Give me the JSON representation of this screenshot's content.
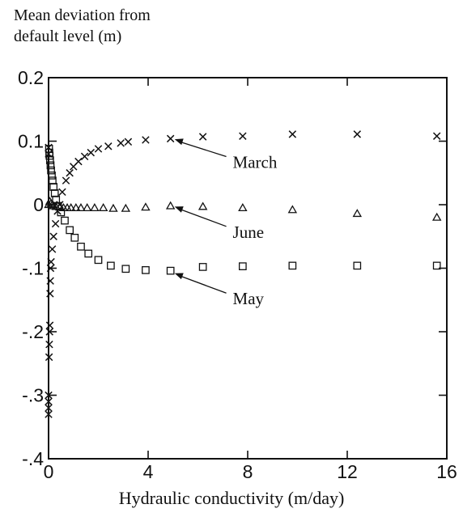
{
  "chart_data": {
    "type": "scatter",
    "title": "",
    "ylabel": "Mean deviation from\ndefault level (m)",
    "xlabel": "Hydraulic conductivity (m/day)",
    "xlim": [
      0,
      16
    ],
    "ylim": [
      -0.4,
      0.2
    ],
    "x_ticks": [
      {
        "value": 0,
        "label": "0"
      },
      {
        "value": 4,
        "label": "4"
      },
      {
        "value": 8,
        "label": "8"
      },
      {
        "value": 12,
        "label": "12"
      },
      {
        "value": 16,
        "label": "16"
      }
    ],
    "y_ticks": [
      {
        "value": 0.2,
        "label": "0.2"
      },
      {
        "value": 0.1,
        "label": "0.1"
      },
      {
        "value": 0,
        "label": "0"
      },
      {
        "value": -0.1,
        "label": "-.1"
      },
      {
        "value": -0.2,
        "label": "-.2"
      },
      {
        "value": -0.3,
        "label": "-.3"
      },
      {
        "value": -0.4,
        "label": "-.4"
      }
    ],
    "grid": false,
    "legend": "none",
    "series": [
      {
        "name": "March",
        "marker": "x",
        "color": "#111111",
        "points": [
          [
            0.0,
            0.09
          ],
          [
            0.0,
            0.08
          ],
          [
            0.0,
            -0.3
          ],
          [
            0.0,
            -0.31
          ],
          [
            0.0,
            -0.32
          ],
          [
            0.0,
            -0.33
          ],
          [
            0.02,
            -0.24
          ],
          [
            0.03,
            -0.22
          ],
          [
            0.04,
            -0.2
          ],
          [
            0.05,
            -0.19
          ],
          [
            0.06,
            -0.14
          ],
          [
            0.07,
            -0.12
          ],
          [
            0.08,
            -0.1
          ],
          [
            0.1,
            -0.09
          ],
          [
            0.15,
            -0.07
          ],
          [
            0.2,
            -0.05
          ],
          [
            0.28,
            -0.03
          ],
          [
            0.36,
            -0.01
          ],
          [
            0.45,
            0.0
          ],
          [
            0.55,
            0.02
          ],
          [
            0.7,
            0.038
          ],
          [
            0.85,
            0.05
          ],
          [
            1.0,
            0.06
          ],
          [
            1.2,
            0.068
          ],
          [
            1.45,
            0.076
          ],
          [
            1.7,
            0.082
          ],
          [
            2.0,
            0.088
          ],
          [
            2.4,
            0.092
          ],
          [
            2.9,
            0.097
          ],
          [
            3.2,
            0.099
          ],
          [
            3.9,
            0.102
          ],
          [
            4.9,
            0.104
          ],
          [
            6.2,
            0.107
          ],
          [
            7.8,
            0.108
          ],
          [
            9.8,
            0.111
          ],
          [
            12.4,
            0.111
          ],
          [
            15.6,
            0.108
          ]
        ]
      },
      {
        "name": "June",
        "marker": "triangle",
        "color": "#111111",
        "points": [
          [
            0.0,
            0.0
          ],
          [
            0.05,
            0.005
          ],
          [
            0.1,
            0.002
          ],
          [
            0.15,
            0.0
          ],
          [
            0.2,
            -0.002
          ],
          [
            0.3,
            -0.003
          ],
          [
            0.45,
            -0.004
          ],
          [
            0.6,
            -0.005
          ],
          [
            0.75,
            -0.005
          ],
          [
            0.9,
            -0.005
          ],
          [
            1.1,
            -0.005
          ],
          [
            1.3,
            -0.005
          ],
          [
            1.55,
            -0.005
          ],
          [
            1.85,
            -0.005
          ],
          [
            2.2,
            -0.005
          ],
          [
            2.6,
            -0.006
          ],
          [
            3.1,
            -0.006
          ],
          [
            3.9,
            -0.004
          ],
          [
            4.9,
            -0.002
          ],
          [
            6.2,
            -0.003
          ],
          [
            7.8,
            -0.005
          ],
          [
            9.8,
            -0.008
          ],
          [
            12.4,
            -0.014
          ],
          [
            15.6,
            -0.02
          ]
        ]
      },
      {
        "name": "May",
        "marker": "square",
        "color": "#111111",
        "points": [
          [
            0.02,
            0.088
          ],
          [
            0.03,
            0.082
          ],
          [
            0.04,
            0.077
          ],
          [
            0.06,
            0.07
          ],
          [
            0.08,
            0.062
          ],
          [
            0.1,
            0.054
          ],
          [
            0.13,
            0.046
          ],
          [
            0.16,
            0.038
          ],
          [
            0.2,
            0.028
          ],
          [
            0.25,
            0.018
          ],
          [
            0.3,
            0.008
          ],
          [
            0.38,
            -0.002
          ],
          [
            0.5,
            -0.012
          ],
          [
            0.65,
            -0.025
          ],
          [
            0.85,
            -0.04
          ],
          [
            1.05,
            -0.052
          ],
          [
            1.3,
            -0.066
          ],
          [
            1.6,
            -0.077
          ],
          [
            2.0,
            -0.087
          ],
          [
            2.5,
            -0.096
          ],
          [
            3.1,
            -0.101
          ],
          [
            3.9,
            -0.103
          ],
          [
            4.9,
            -0.104
          ],
          [
            6.2,
            -0.098
          ],
          [
            7.8,
            -0.097
          ],
          [
            9.8,
            -0.096
          ],
          [
            12.4,
            -0.096
          ],
          [
            15.6,
            -0.096
          ]
        ]
      }
    ],
    "annotations": [
      {
        "text": "March",
        "target": [
          5.0,
          0.103
        ],
        "label_at": [
          7.4,
          0.058
        ]
      },
      {
        "text": "June",
        "target": [
          5.0,
          -0.003
        ],
        "label_at": [
          7.4,
          -0.052
        ]
      },
      {
        "text": "May",
        "target": [
          5.0,
          -0.108
        ],
        "label_at": [
          7.4,
          -0.157
        ]
      }
    ]
  }
}
